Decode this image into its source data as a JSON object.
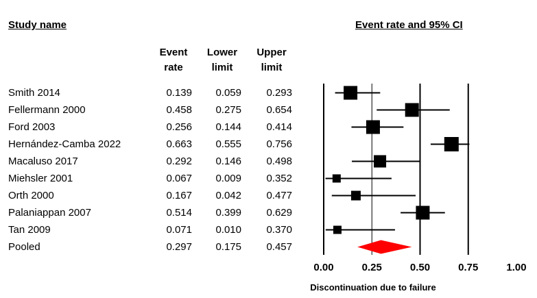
{
  "header": {
    "study_name": "Study name",
    "plot_title": "Event rate and 95% CI"
  },
  "columns": {
    "event_rate": [
      "Event",
      "rate"
    ],
    "lower_limit": [
      "Lower",
      "limit"
    ],
    "upper_limit": [
      "Upper",
      "limit"
    ]
  },
  "rows": [
    {
      "study": "Smith 2014",
      "rate": "0.139",
      "lower": "0.059",
      "upper": "0.293"
    },
    {
      "study": "Fellermann 2000",
      "rate": "0.458",
      "lower": "0.275",
      "upper": "0.654"
    },
    {
      "study": "Ford 2003",
      "rate": "0.256",
      "lower": "0.144",
      "upper": "0.414"
    },
    {
      "study": "Hernández-Camba 2022",
      "rate": "0.663",
      "lower": "0.555",
      "upper": "0.756"
    },
    {
      "study": "Macaluso 2017",
      "rate": "0.292",
      "lower": "0.146",
      "upper": "0.498"
    },
    {
      "study": "Miehsler 2001",
      "rate": "0.067",
      "lower": "0.009",
      "upper": "0.352"
    },
    {
      "study": "Orth 2000",
      "rate": "0.167",
      "lower": "0.042",
      "upper": "0.477"
    },
    {
      "study": "Palaniappan 2007",
      "rate": "0.514",
      "lower": "0.399",
      "upper": "0.629"
    },
    {
      "study": "Tan 2009",
      "rate": "0.071",
      "lower": "0.010",
      "upper": "0.370"
    },
    {
      "study": "Pooled",
      "rate": "0.297",
      "lower": "0.175",
      "upper": "0.457"
    }
  ],
  "chart_data": {
    "type": "forest",
    "title": "Event rate and 95% CI",
    "xlabel": "Discontinuation due to failure",
    "xlim": [
      0,
      1
    ],
    "x_ticks": [
      "0.00",
      "0.25",
      "0.50",
      "0.75",
      "1.00"
    ],
    "grid": "vertical lines at 0.00, 0.50, 0.75",
    "reference_line": 0.25,
    "studies": [
      {
        "name": "Smith 2014",
        "estimate": 0.139,
        "lower": 0.059,
        "upper": 0.293,
        "weight": 1.0
      },
      {
        "name": "Fellermann 2000",
        "estimate": 0.458,
        "lower": 0.275,
        "upper": 0.654,
        "weight": 1.0
      },
      {
        "name": "Ford 2003",
        "estimate": 0.256,
        "lower": 0.144,
        "upper": 0.414,
        "weight": 1.0
      },
      {
        "name": "Hernández-Camba 2022",
        "estimate": 0.663,
        "lower": 0.555,
        "upper": 0.756,
        "weight": 1.05
      },
      {
        "name": "Macaluso 2017",
        "estimate": 0.292,
        "lower": 0.146,
        "upper": 0.498,
        "weight": 0.9
      },
      {
        "name": "Miehsler 2001",
        "estimate": 0.067,
        "lower": 0.009,
        "upper": 0.352,
        "weight": 0.6
      },
      {
        "name": "Orth 2000",
        "estimate": 0.167,
        "lower": 0.042,
        "upper": 0.477,
        "weight": 0.7
      },
      {
        "name": "Palaniappan 2007",
        "estimate": 0.514,
        "lower": 0.399,
        "upper": 0.629,
        "weight": 1.0
      },
      {
        "name": "Tan 2009",
        "estimate": 0.071,
        "lower": 0.01,
        "upper": 0.37,
        "weight": 0.6
      }
    ],
    "pooled": {
      "name": "Pooled",
      "estimate": 0.297,
      "lower": 0.175,
      "upper": 0.457
    },
    "colors": {
      "marker": "#000000",
      "pooled": "#ff0000",
      "lines": "#000000"
    }
  }
}
